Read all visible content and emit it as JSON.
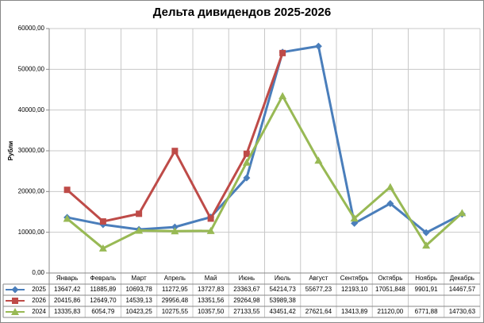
{
  "chart_data": {
    "type": "line",
    "title": "Дельта дивидендов 2025-2026",
    "y_label": "Рубли",
    "categories": [
      "Январь",
      "Февраль",
      "Март",
      "Апрель",
      "Май",
      "Июнь",
      "Июль",
      "Август",
      "Сентябрь",
      "Октябрь",
      "Ноябрь",
      "Декабрь"
    ],
    "series": [
      {
        "name": "2025",
        "color": "#4a7ebb",
        "marker": "diamond",
        "values": [
          13647.42,
          11885.89,
          10693.78,
          11272.95,
          13727.83,
          23363.67,
          54214.73,
          55677.23,
          12193.1,
          17051.848,
          9901.91,
          14467.57
        ],
        "value_labels": [
          "13647,42",
          "11885,89",
          "10693,78",
          "11272,95",
          "13727,83",
          "23363,67",
          "54214,73",
          "55677,23",
          "12193,10",
          "17051,848",
          "9901,91",
          "14467,57"
        ]
      },
      {
        "name": "2026",
        "color": "#be4b48",
        "marker": "square",
        "values": [
          20415.86,
          12649.7,
          14539.13,
          29956.48,
          13351.56,
          29264.98,
          53989.38,
          null,
          null,
          null,
          null,
          null
        ],
        "value_labels": [
          "20415,86",
          "12649,70",
          "14539,13",
          "29956,48",
          "13351,56",
          "29264,98",
          "53989,38",
          null,
          null,
          null,
          null,
          null
        ]
      },
      {
        "name": "2024",
        "color": "#98b954",
        "marker": "triangle",
        "values": [
          13335.83,
          6054.79,
          10423.25,
          10275.55,
          10357.5,
          27133.55,
          43451.42,
          27621.64,
          13413.89,
          21120.0,
          6771.88,
          14730.63
        ],
        "value_labels": [
          "13335,83",
          "6054,79",
          "10423,25",
          "10275,55",
          "10357,50",
          "27133,55",
          "43451,42",
          "27621,64",
          "13413,89",
          "21120,00",
          "6771,88",
          "14730,63"
        ]
      }
    ],
    "ylim": [
      0,
      60000
    ],
    "yticks": [
      {
        "value": 0,
        "label": "0,00"
      },
      {
        "value": 10000,
        "label": "10000,00"
      },
      {
        "value": 20000,
        "label": "20000,00"
      },
      {
        "value": 30000,
        "label": "30000,00"
      },
      {
        "value": 40000,
        "label": "40000,00"
      },
      {
        "value": 50000,
        "label": "50000,00"
      },
      {
        "value": 60000,
        "label": "60000,00"
      }
    ],
    "grid": true
  }
}
